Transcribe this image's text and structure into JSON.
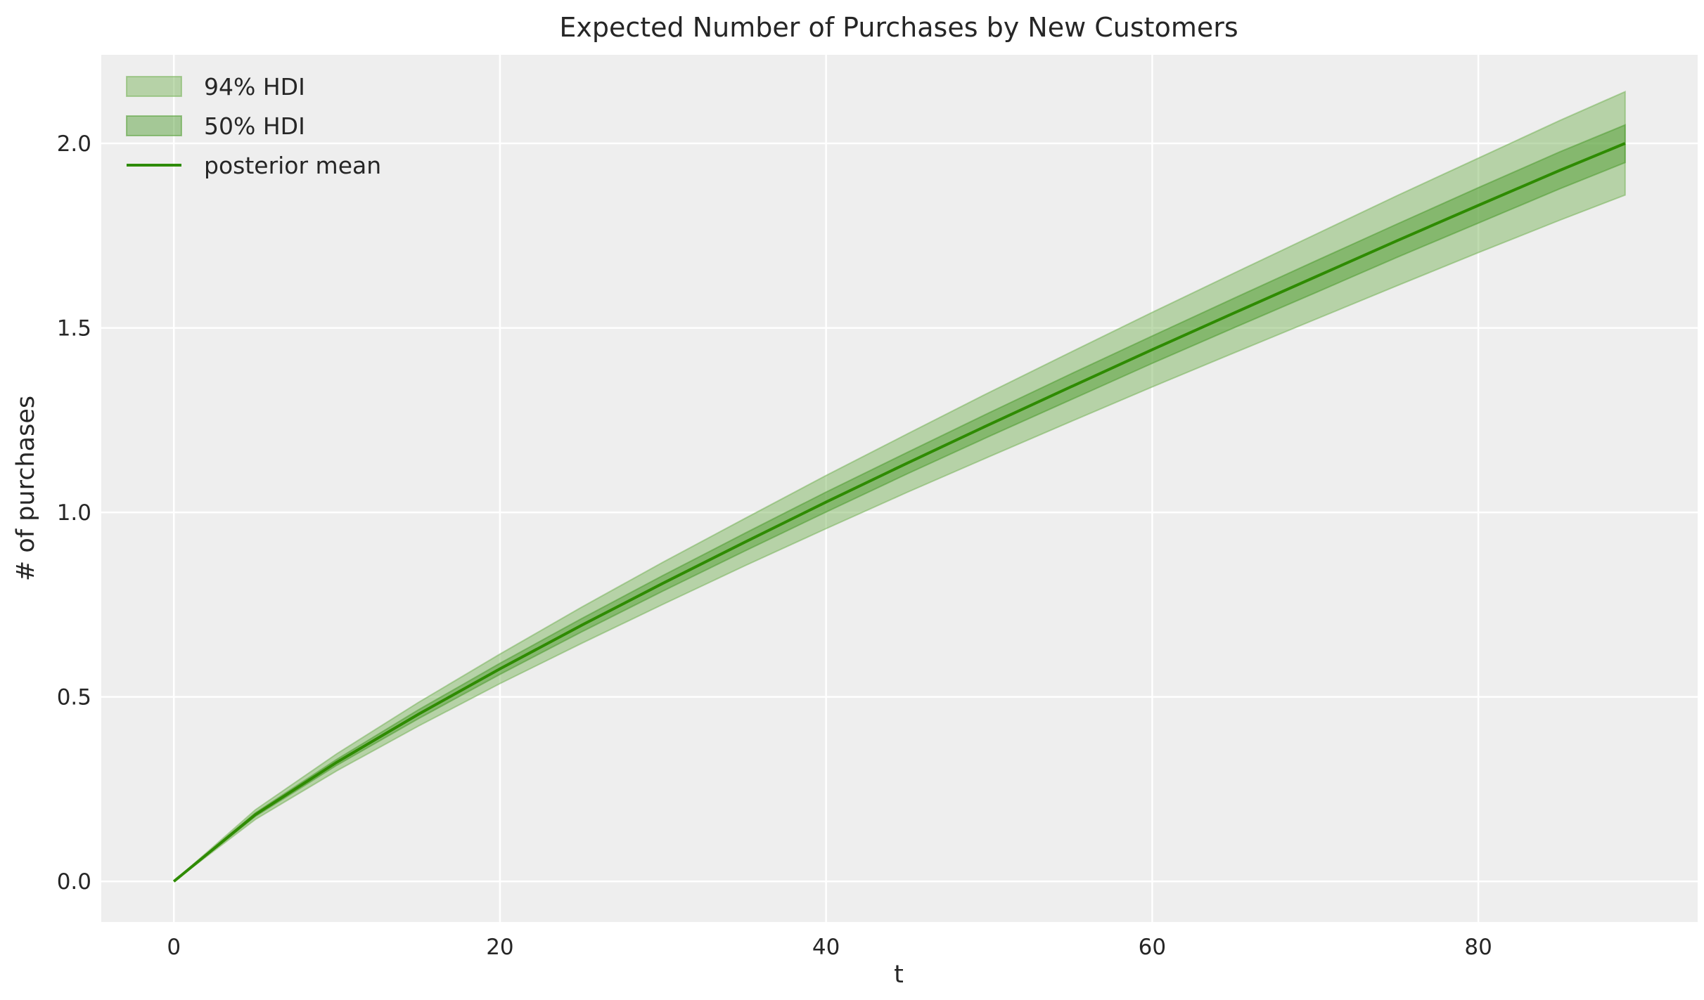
{
  "chart_data": {
    "type": "area",
    "title": "Expected Number of Purchases by New Customers",
    "xlabel": "t",
    "ylabel": "# of purchases",
    "xlim": [
      -4.45,
      93.45
    ],
    "ylim": [
      -0.11,
      2.24
    ],
    "xticks": [
      0,
      20,
      40,
      60,
      80
    ],
    "yticks": [
      0.0,
      0.5,
      1.0,
      1.5,
      2.0
    ],
    "xtick_labels": [
      "0",
      "20",
      "40",
      "60",
      "80"
    ],
    "ytick_labels": [
      "0.0",
      "0.5",
      "1.0",
      "1.5",
      "2.0"
    ],
    "grid": true,
    "legend_position": "top-left",
    "x": [
      0,
      5,
      10,
      15,
      20,
      25,
      30,
      35,
      40,
      45,
      50,
      55,
      60,
      65,
      70,
      75,
      80,
      85,
      89
    ],
    "series": [
      {
        "name": "94% HDI",
        "kind": "band",
        "color": "#70b050",
        "lower": [
          0,
          0.168,
          0.3,
          0.421,
          0.536,
          0.645,
          0.751,
          0.855,
          0.956,
          1.055,
          1.151,
          1.246,
          1.34,
          1.432,
          1.523,
          1.614,
          1.704,
          1.792,
          1.86
        ],
        "upper": [
          0,
          0.194,
          0.346,
          0.485,
          0.616,
          0.743,
          0.865,
          0.983,
          1.1,
          1.213,
          1.325,
          1.434,
          1.542,
          1.648,
          1.753,
          1.858,
          1.96,
          2.062,
          2.14
        ]
      },
      {
        "name": "50% HDI",
        "kind": "band",
        "color": "#4a9a2a",
        "lower": [
          0,
          0.176,
          0.315,
          0.441,
          0.561,
          0.676,
          0.787,
          0.895,
          1.001,
          1.105,
          1.206,
          1.305,
          1.404,
          1.5,
          1.595,
          1.691,
          1.784,
          1.877,
          1.948
        ],
        "upper": [
          0,
          0.186,
          0.331,
          0.465,
          0.591,
          0.712,
          0.829,
          0.943,
          1.055,
          1.163,
          1.27,
          1.375,
          1.478,
          1.58,
          1.681,
          1.781,
          1.88,
          1.977,
          2.05
        ]
      },
      {
        "name": "posterior mean",
        "kind": "line",
        "color": "#2e8b00",
        "values": [
          0,
          0.181,
          0.323,
          0.453,
          0.576,
          0.694,
          0.808,
          0.919,
          1.028,
          1.134,
          1.238,
          1.34,
          1.441,
          1.54,
          1.638,
          1.736,
          1.832,
          1.927,
          2.0
        ]
      }
    ]
  }
}
